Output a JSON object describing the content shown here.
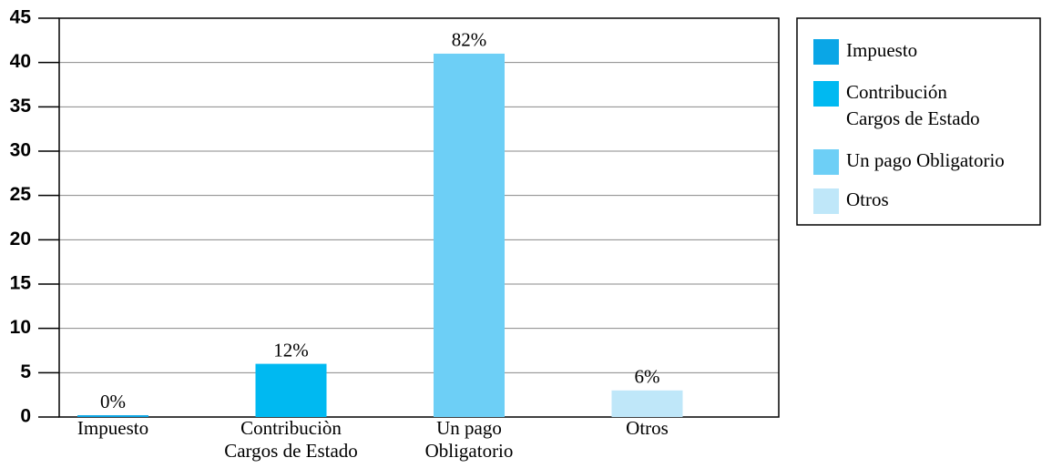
{
  "chart_data": {
    "type": "bar",
    "categories": [
      [
        "Impuesto"
      ],
      [
        "Contribuciòn",
        "Cargos de Estado"
      ],
      [
        "Un pago",
        "Obligatorio"
      ],
      [
        "Otros"
      ]
    ],
    "values": [
      0.2,
      6,
      41,
      3
    ],
    "value_labels": [
      "0%",
      "12%",
      "82%",
      "6%"
    ],
    "colors": [
      "#0aa6e6",
      "#00b9f1",
      "#6dcff6",
      "#bfe7f9"
    ],
    "legend": [
      [
        "Impuesto"
      ],
      [
        "Contribución",
        "Cargos de Estado"
      ],
      [
        "Un pago Obligatorio"
      ],
      [
        "Otros"
      ]
    ],
    "ylim": [
      0,
      45
    ],
    "yticks": [
      0,
      5,
      10,
      15,
      20,
      25,
      30,
      35,
      40,
      45
    ],
    "grid": true
  }
}
